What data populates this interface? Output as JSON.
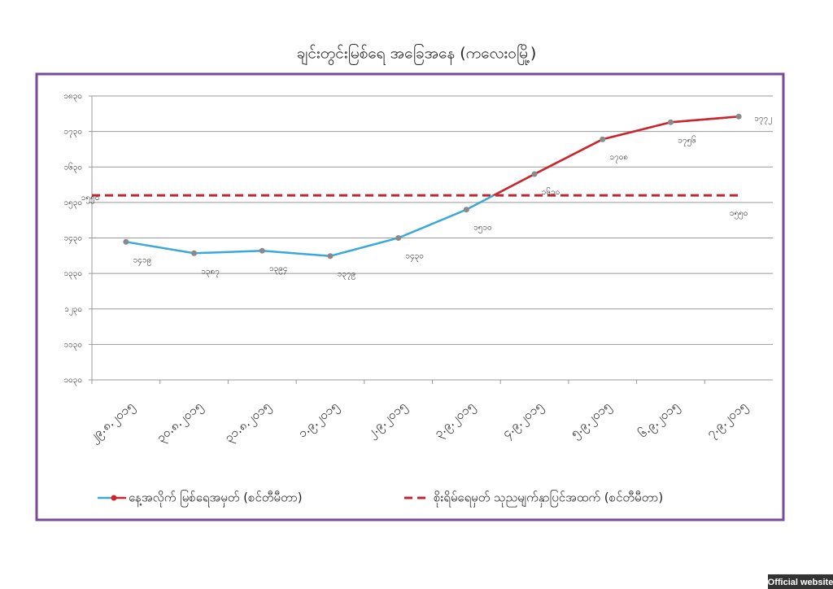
{
  "chart_data": {
    "type": "line",
    "title": "ချင်းတွင်းမြစ်ရေ အခြေအနေ (ကလေးဝမြို့)",
    "categories": [
      "၂၉.၈.၂၀၁၅",
      "၃၀.၈.၂၀၁၅",
      "၃၁.၈.၂၀၁၅",
      "၁.၉.၂၀၁၅",
      "၂.၉.၂၀၁၅",
      "၃.၉.၂၀၁၅",
      "၄.၉.၂၀၁၅",
      "၅.၉.၂၀၁၅",
      "၆.၉.၂၀၁၅",
      "၇.၉.၂၀၁၅"
    ],
    "series": [
      {
        "name": "နေ့အလိုက် မြစ်ရေအမှတ် (စင်တီမီတာ)",
        "color": "#3aa8d8",
        "color_above_threshold": "#d2232a",
        "values": [
          1419,
          1387,
          1394,
          1379,
          1430,
          1510,
          1610,
          1708,
          1756,
          1772
        ],
        "value_labels": [
          "၁၄၁၉",
          "၁၃၈၇",
          "၁၃၉၄",
          "၁၃၇၉",
          "၁၄၃၀",
          "၁၅၁၀",
          "၁၆၁၀",
          "၁၇၀၈",
          "၁၇၅၆",
          "၁၇၇၂"
        ]
      }
    ],
    "threshold": {
      "name": "စိုးရိမ်ရေမှတ် သုညမျက်နှာပြင်အထက် (စင်တီမီတာ)",
      "value": 1550,
      "label": "၁၅၅၀",
      "color": "#c0272d"
    },
    "ylim": [
      1030,
      1830
    ],
    "yticks": [
      {
        "value": 1030,
        "label": "၁၀၃၀"
      },
      {
        "value": 1130,
        "label": "၁၁၃၀"
      },
      {
        "value": 1230,
        "label": "၁၂၃၀"
      },
      {
        "value": 1330,
        "label": "၁၃၃၀"
      },
      {
        "value": 1430,
        "label": "၁၄၃၀"
      },
      {
        "value": 1530,
        "label": "၁၅၃၀"
      },
      {
        "value": 1630,
        "label": "၁၆၃၀"
      },
      {
        "value": 1730,
        "label": "၁၇၃၀"
      },
      {
        "value": 1830,
        "label": "၁၈၃၀"
      }
    ],
    "grid": true,
    "legend": "bottom"
  },
  "watermark": "Official website"
}
